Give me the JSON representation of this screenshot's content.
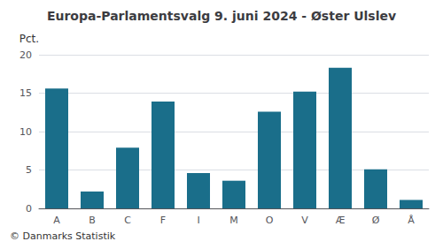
{
  "chart_data": {
    "type": "bar",
    "title": "Europa-Parlamentsvalg 9. juni 2024 - Øster Ulslev",
    "ylabel": "Pct.",
    "footer": "© Danmarks Statistik",
    "categories": [
      "A",
      "B",
      "C",
      "F",
      "I",
      "M",
      "O",
      "V",
      "Æ",
      "Ø",
      "Å"
    ],
    "values": [
      15.6,
      2.2,
      7.9,
      13.9,
      4.6,
      3.6,
      12.6,
      15.2,
      18.3,
      5.1,
      1.1
    ],
    "color": "#1a6e8a",
    "ylim": [
      0,
      20
    ],
    "yticks": [
      0,
      5,
      10,
      15,
      20
    ],
    "grid": true
  }
}
